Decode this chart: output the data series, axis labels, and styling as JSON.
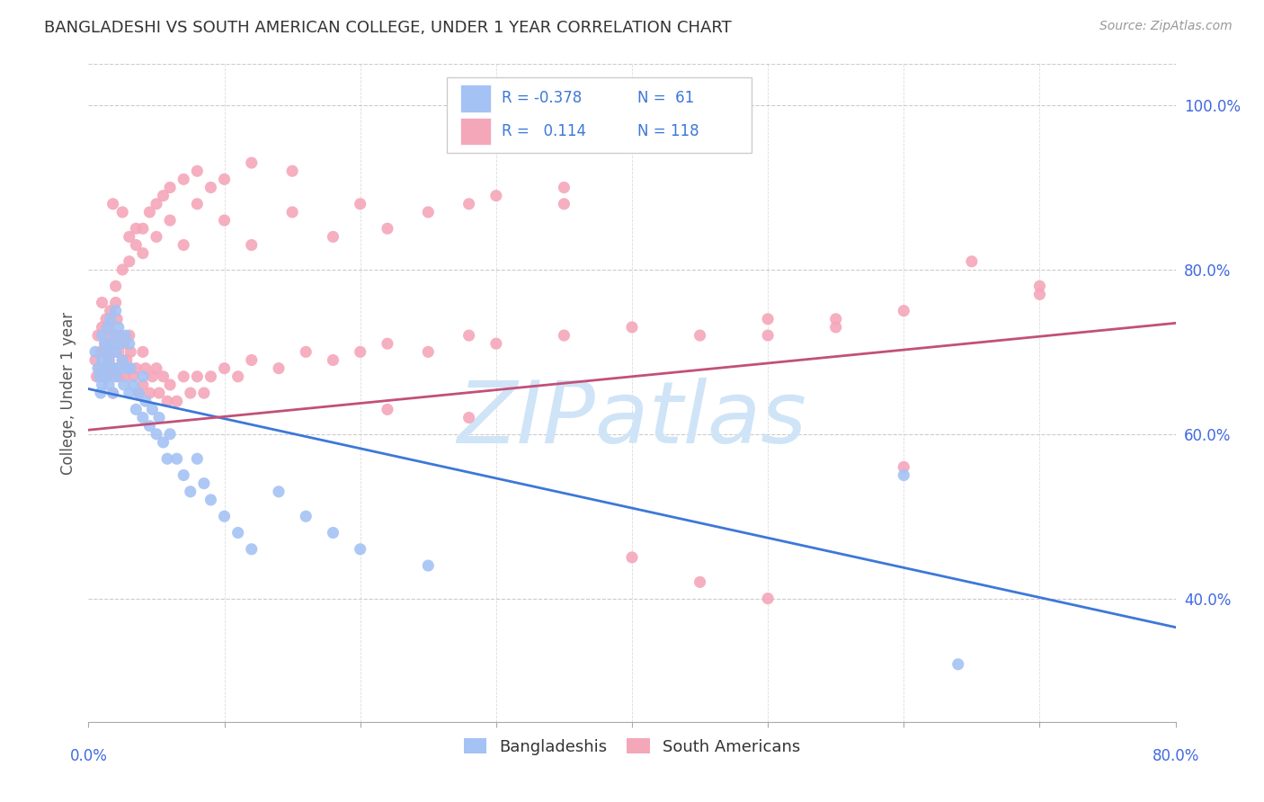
{
  "title": "BANGLADESHI VS SOUTH AMERICAN COLLEGE, UNDER 1 YEAR CORRELATION CHART",
  "source": "Source: ZipAtlas.com",
  "ylabel": "College, Under 1 year",
  "blue_color": "#a4c2f4",
  "pink_color": "#f4a7b9",
  "blue_line_color": "#3c78d8",
  "pink_line_color": "#c2507a",
  "legend_R_blue": "-0.378",
  "legend_N_blue": "61",
  "legend_R_pink": "0.114",
  "legend_N_pink": "118",
  "title_color": "#333333",
  "source_color": "#999999",
  "axis_label_color": "#4169e1",
  "watermark_color": "#d0e4f7",
  "grid_color": "#cccccc",
  "xlim": [
    0.0,
    0.8
  ],
  "ylim": [
    0.25,
    1.05
  ],
  "blue_trend_start": 0.655,
  "blue_trend_end": 0.365,
  "pink_trend_start": 0.605,
  "pink_trend_end": 0.735,
  "bangladeshi_x": [
    0.005,
    0.007,
    0.008,
    0.009,
    0.01,
    0.01,
    0.01,
    0.012,
    0.012,
    0.013,
    0.013,
    0.014,
    0.015,
    0.015,
    0.016,
    0.017,
    0.018,
    0.018,
    0.019,
    0.02,
    0.02,
    0.02,
    0.022,
    0.022,
    0.023,
    0.025,
    0.026,
    0.027,
    0.028,
    0.03,
    0.03,
    0.031,
    0.033,
    0.035,
    0.037,
    0.04,
    0.04,
    0.042,
    0.045,
    0.047,
    0.05,
    0.052,
    0.055,
    0.058,
    0.06,
    0.065,
    0.07,
    0.075,
    0.08,
    0.085,
    0.09,
    0.1,
    0.11,
    0.12,
    0.14,
    0.16,
    0.18,
    0.2,
    0.25,
    0.6,
    0.64
  ],
  "bangladeshi_y": [
    0.7,
    0.68,
    0.67,
    0.65,
    0.72,
    0.69,
    0.66,
    0.71,
    0.68,
    0.7,
    0.67,
    0.73,
    0.69,
    0.66,
    0.74,
    0.71,
    0.68,
    0.65,
    0.72,
    0.75,
    0.7,
    0.67,
    0.73,
    0.68,
    0.71,
    0.69,
    0.66,
    0.72,
    0.68,
    0.71,
    0.65,
    0.68,
    0.66,
    0.63,
    0.65,
    0.62,
    0.67,
    0.64,
    0.61,
    0.63,
    0.6,
    0.62,
    0.59,
    0.57,
    0.6,
    0.57,
    0.55,
    0.53,
    0.57,
    0.54,
    0.52,
    0.5,
    0.48,
    0.46,
    0.53,
    0.5,
    0.48,
    0.46,
    0.44,
    0.55,
    0.32
  ],
  "southamerican_x": [
    0.005,
    0.006,
    0.007,
    0.008,
    0.009,
    0.01,
    0.01,
    0.01,
    0.012,
    0.012,
    0.013,
    0.013,
    0.014,
    0.015,
    0.015,
    0.016,
    0.017,
    0.018,
    0.018,
    0.019,
    0.02,
    0.02,
    0.02,
    0.021,
    0.022,
    0.022,
    0.023,
    0.025,
    0.026,
    0.027,
    0.028,
    0.03,
    0.03,
    0.031,
    0.033,
    0.035,
    0.037,
    0.04,
    0.04,
    0.042,
    0.045,
    0.047,
    0.05,
    0.052,
    0.055,
    0.058,
    0.06,
    0.065,
    0.07,
    0.075,
    0.08,
    0.085,
    0.09,
    0.1,
    0.11,
    0.12,
    0.14,
    0.16,
    0.18,
    0.2,
    0.22,
    0.25,
    0.28,
    0.3,
    0.35,
    0.4,
    0.45,
    0.5,
    0.55,
    0.6,
    0.65,
    0.7,
    0.018,
    0.025,
    0.03,
    0.035,
    0.04,
    0.05,
    0.06,
    0.07,
    0.08,
    0.1,
    0.12,
    0.15,
    0.18,
    0.22,
    0.28,
    0.35,
    0.22,
    0.28,
    0.01,
    0.015,
    0.02,
    0.025,
    0.03,
    0.035,
    0.04,
    0.045,
    0.05,
    0.055,
    0.06,
    0.07,
    0.08,
    0.09,
    0.1,
    0.12,
    0.15,
    0.2,
    0.25,
    0.3,
    0.35,
    0.5,
    0.55,
    0.6,
    0.7,
    0.4,
    0.45,
    0.5
  ],
  "southamerican_y": [
    0.69,
    0.67,
    0.72,
    0.68,
    0.7,
    0.73,
    0.7,
    0.67,
    0.71,
    0.68,
    0.74,
    0.7,
    0.67,
    0.72,
    0.69,
    0.75,
    0.71,
    0.68,
    0.65,
    0.7,
    0.76,
    0.72,
    0.68,
    0.74,
    0.7,
    0.67,
    0.72,
    0.69,
    0.71,
    0.67,
    0.69,
    0.72,
    0.68,
    0.7,
    0.67,
    0.68,
    0.65,
    0.7,
    0.66,
    0.68,
    0.65,
    0.67,
    0.68,
    0.65,
    0.67,
    0.64,
    0.66,
    0.64,
    0.67,
    0.65,
    0.67,
    0.65,
    0.67,
    0.68,
    0.67,
    0.69,
    0.68,
    0.7,
    0.69,
    0.7,
    0.71,
    0.7,
    0.72,
    0.71,
    0.72,
    0.73,
    0.72,
    0.74,
    0.73,
    0.56,
    0.81,
    0.77,
    0.88,
    0.87,
    0.84,
    0.85,
    0.82,
    0.84,
    0.86,
    0.83,
    0.88,
    0.86,
    0.83,
    0.87,
    0.84,
    0.85,
    0.88,
    0.88,
    0.63,
    0.62,
    0.76,
    0.73,
    0.78,
    0.8,
    0.81,
    0.83,
    0.85,
    0.87,
    0.88,
    0.89,
    0.9,
    0.91,
    0.92,
    0.9,
    0.91,
    0.93,
    0.92,
    0.88,
    0.87,
    0.89,
    0.9,
    0.72,
    0.74,
    0.75,
    0.78,
    0.45,
    0.42,
    0.4
  ]
}
